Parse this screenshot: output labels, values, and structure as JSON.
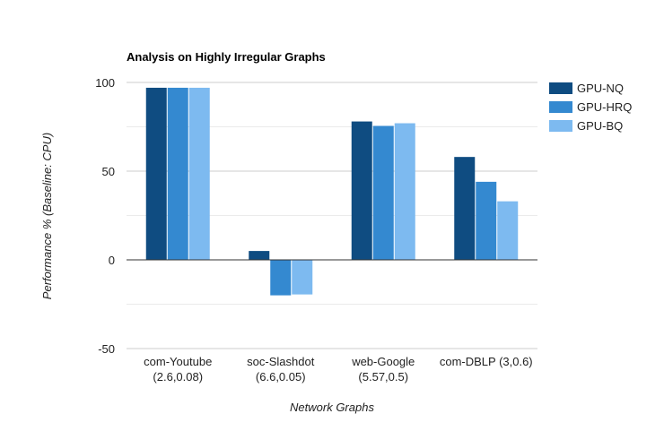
{
  "chart_data": {
    "type": "bar",
    "title": "Analysis on Highly Irregular Graphs",
    "xlabel": "Network Graphs",
    "ylabel": "Performance % (Baseline: CPU)",
    "categories": [
      [
        "com-Youtube",
        "(2.6,0.08)"
      ],
      [
        "soc-Slashdot",
        "(6.6,0.05)"
      ],
      [
        "web-Google",
        "(5.57,0.5)"
      ],
      [
        "com-DBLP (3,0.6)"
      ]
    ],
    "series": [
      {
        "name": "GPU-NQ",
        "color": "#0f4c81",
        "values": [
          97,
          5,
          78,
          58
        ]
      },
      {
        "name": "GPU-HRQ",
        "color": "#3489d0",
        "values": [
          97,
          -20,
          75.5,
          44
        ]
      },
      {
        "name": "GPU-BQ",
        "color": "#7dbaf0",
        "values": [
          97,
          -19.5,
          77,
          33
        ]
      }
    ],
    "ylim": [
      -50,
      100
    ],
    "yticks": [
      -50,
      0,
      50,
      100
    ],
    "grid": true,
    "legend": "right"
  }
}
